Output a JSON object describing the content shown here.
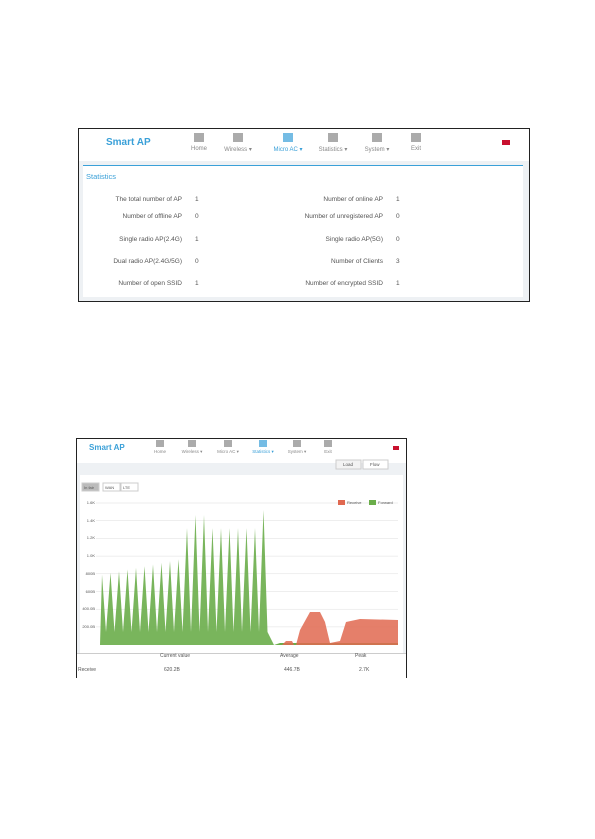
{
  "screenshot1": {
    "brand": "Smart AP",
    "nav": [
      "Home",
      "Wireless",
      "Micro AC",
      "Statistics",
      "System",
      "Exit"
    ],
    "section": "Statistics",
    "stats": [
      [
        "The total number of AP",
        1,
        "Number of online AP",
        1
      ],
      [
        "Number of offline AP",
        0,
        "Number of unregistered AP",
        0
      ],
      [
        "Single radio AP(2.4G)",
        1,
        "Single radio AP(5G)",
        0
      ],
      [
        "Dual radio AP(2.4G/5G)",
        0,
        "Number of Clients",
        3
      ],
      [
        "Number of open SSID",
        1,
        "Number of encrypted SSID",
        1
      ]
    ]
  },
  "screenshot2": {
    "brand": "Smart AP",
    "nav": [
      "Home",
      "Wireless",
      "Micro AC",
      "Statistics",
      "System",
      "Exit"
    ],
    "tabs": [
      "Load",
      "Flow"
    ],
    "filters": [
      "In fair",
      "WAN",
      "LTE"
    ],
    "legend": [
      "Receive",
      "Forward"
    ],
    "yticks": [
      "1.6K",
      "1.4K",
      "1.2K",
      "1.0K",
      "800B",
      "600B",
      "400.0B",
      "200.0B"
    ],
    "table": {
      "header": [
        "Current value",
        "Average",
        "Peak"
      ],
      "rows": [
        [
          "Receive",
          "620.2B",
          "446.7B",
          "2.7K"
        ]
      ]
    }
  }
}
